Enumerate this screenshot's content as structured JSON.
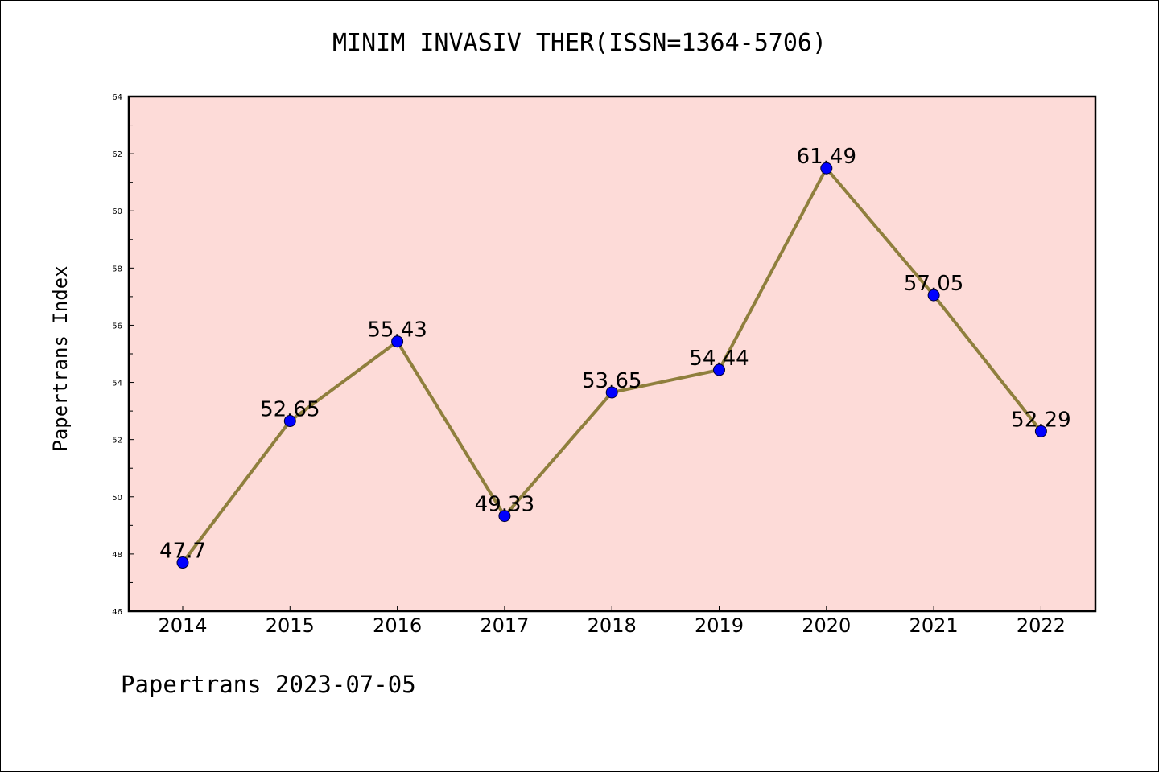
{
  "chart_data": {
    "type": "line",
    "title": "MINIM INVASIV THER(ISSN=1364-5706)",
    "ylabel": "Papertrans Index",
    "xlabel": "",
    "x": [
      "2014",
      "2015",
      "2016",
      "2017",
      "2018",
      "2019",
      "2020",
      "2021",
      "2022"
    ],
    "series": [
      {
        "values": [
          47.7,
          52.65,
          55.43,
          49.33,
          53.65,
          54.44,
          61.49,
          57.05,
          52.29
        ],
        "labels": [
          "47.7",
          "52.65",
          "55.43",
          "49.33",
          "53.65",
          "54.44",
          "61.49",
          "57.05",
          "52.29"
        ]
      }
    ],
    "ylim": [
      46,
      64
    ],
    "yticks": [
      "46",
      "48",
      "50",
      "52",
      "54",
      "56",
      "58",
      "60",
      "62",
      "64"
    ],
    "grid": false,
    "colors": {
      "plot_background": "#fddbd8",
      "line": "#8f7f3d",
      "marker": "#0000ff"
    }
  },
  "footer": "Papertrans 2023-07-05"
}
